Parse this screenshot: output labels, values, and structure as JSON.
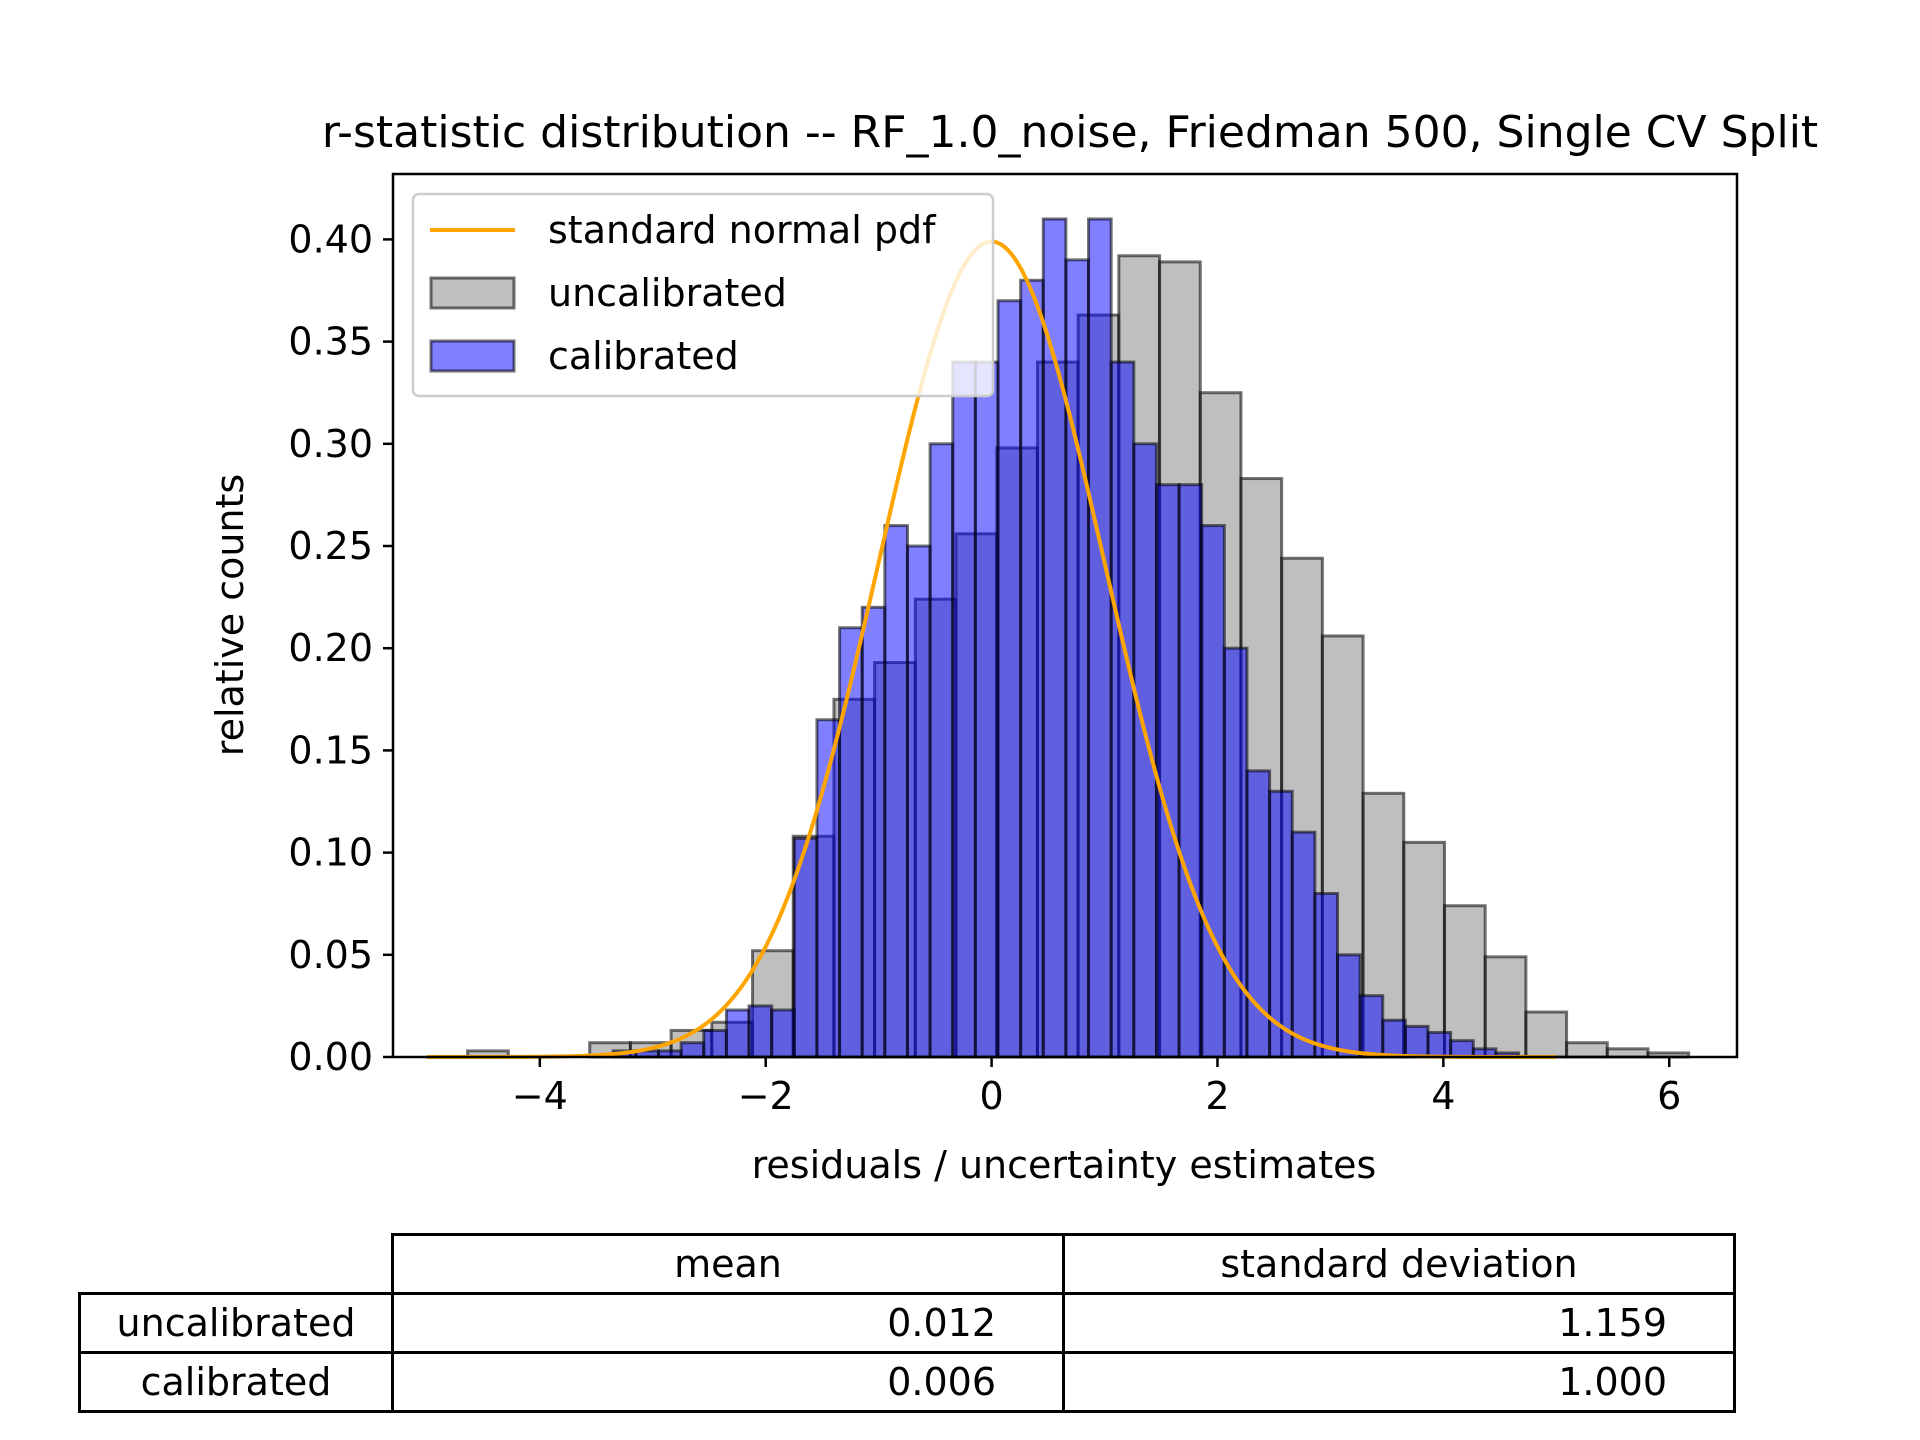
{
  "chart_data": {
    "type": "bar",
    "title": "r-statistic distribution -- RF_1.0_noise, Friedman 500, Single CV Split",
    "xlabel": "residuals / uncertainty estimates",
    "ylabel": "relative counts",
    "xlim": [
      -5.3,
      6.6
    ],
    "ylim": [
      0,
      0.432
    ],
    "xticks": [
      -4,
      -2,
      0,
      2,
      4,
      6
    ],
    "xtick_labels": [
      "−4",
      "−2",
      "0",
      "2",
      "4",
      "6"
    ],
    "yticks": [
      0.0,
      0.05,
      0.1,
      0.15,
      0.2,
      0.25,
      0.3,
      0.35,
      0.4
    ],
    "ytick_labels": [
      "0.00",
      "0.05",
      "0.10",
      "0.15",
      "0.20",
      "0.25",
      "0.30",
      "0.35",
      "0.40"
    ],
    "grid": false,
    "legend_placement": "upper-left",
    "legend": [
      {
        "label": "standard normal pdf",
        "kind": "line",
        "color": "#FFA500"
      },
      {
        "label": "uncalibrated",
        "kind": "patch",
        "color": "#808080"
      },
      {
        "label": "calibrated",
        "kind": "patch",
        "color": "#0000FF"
      }
    ],
    "series": [
      {
        "name": "uncalibrated",
        "color": "#808080",
        "bin_start": -5.0,
        "bin_width": 0.3604,
        "values": [
          0.0,
          0.003,
          0.0,
          0.0,
          0.007,
          0.007,
          0.013,
          0.017,
          0.052,
          0.108,
          0.175,
          0.193,
          0.224,
          0.256,
          0.298,
          0.34,
          0.363,
          0.392,
          0.389,
          0.325,
          0.283,
          0.244,
          0.206,
          0.129,
          0.105,
          0.074,
          0.049,
          0.022,
          0.007,
          0.004,
          0.002,
          0.0,
          0.0,
          0.0,
          0.0,
          0.0,
          0.0,
          0.002,
          0.0,
          0.0,
          0.0,
          0.0,
          0.0,
          0.0,
          0.001
        ]
      },
      {
        "name": "calibrated",
        "color": "#0000FF",
        "bin_start": -3.35,
        "bin_width": 0.2004,
        "values": [
          0.003,
          0.003,
          0.003,
          0.007,
          0.013,
          0.023,
          0.025,
          0.023,
          0.107,
          0.165,
          0.21,
          0.22,
          0.26,
          0.25,
          0.3,
          0.34,
          0.34,
          0.37,
          0.38,
          0.41,
          0.39,
          0.41,
          0.34,
          0.3,
          0.28,
          0.28,
          0.26,
          0.2,
          0.14,
          0.13,
          0.11,
          0.08,
          0.05,
          0.03,
          0.018,
          0.015,
          0.012,
          0.008,
          0.004,
          0.002
        ]
      },
      {
        "name": "standard normal pdf",
        "color": "#FFA500",
        "function": "standard normal pdf",
        "x_range": [
          -5.0,
          5.0
        ]
      }
    ]
  },
  "table": {
    "columns": [
      "mean",
      "standard deviation"
    ],
    "rows": [
      {
        "label": "uncalibrated",
        "mean": "0.012",
        "std": "1.159"
      },
      {
        "label": "calibrated",
        "mean": "0.006",
        "std": "1.000"
      }
    ]
  }
}
